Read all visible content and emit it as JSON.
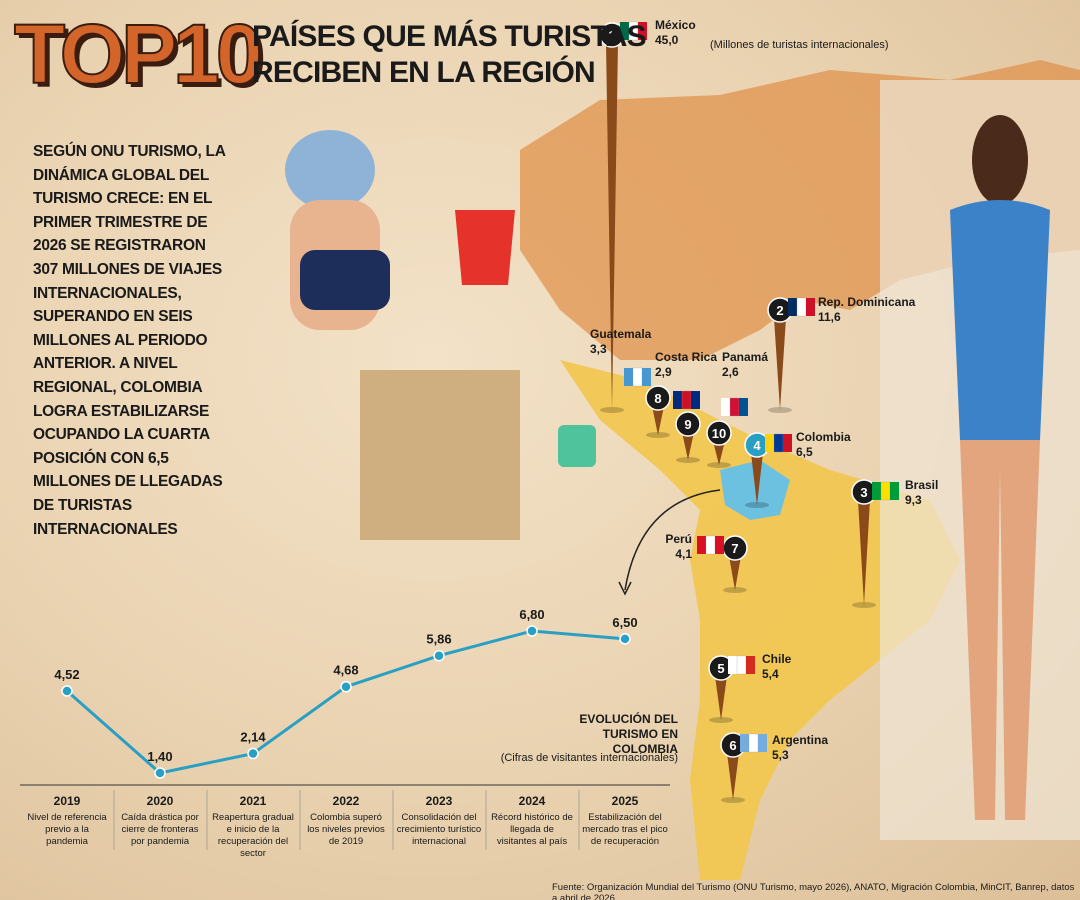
{
  "header": {
    "top": "TOP10",
    "title_lines": [
      "PAÍSES QUE MÁS TURISTAS",
      "RECIBEN EN LA REGIÓN"
    ],
    "unit_note": "(Millones de turistas internacionales)"
  },
  "intro": "SEGÚN ONU TURISMO, LA DINÁMICA GLOBAL DEL TURISMO CRECE: EN EL PRIMER TRIMESTRE DE 2026 SE REGISTRARON 307 MILLONES DE VIAJES INTERNACIONALES, SUPERANDO EN SEIS MILLONES AL PERIODO ANTERIOR. A NIVEL REGIONAL, COLOMBIA LOGRA ESTABILIZARSE OCUPANDO LA CUARTA POSICIÓN CON 6,5 MILLONES DE LLEGADAS DE TURISTAS INTERNACIONALES",
  "ranking": [
    {
      "rank": 1,
      "country": "México",
      "value": 45.0,
      "value_label": "45,0"
    },
    {
      "rank": 2,
      "country": "Rep. Dominicana",
      "value": 11.6,
      "value_label": "11,6"
    },
    {
      "rank": 3,
      "country": "Brasil",
      "value": 9.3,
      "value_label": "9,3"
    },
    {
      "rank": 4,
      "country": "Colombia",
      "value": 6.5,
      "value_label": "6,5"
    },
    {
      "rank": 5,
      "country": "Chile",
      "value": 5.4,
      "value_label": "5,4"
    },
    {
      "rank": 6,
      "country": "Argentina",
      "value": 5.3,
      "value_label": "5,3"
    },
    {
      "rank": 7,
      "country": "Perú",
      "value": 4.1,
      "value_label": "4,1"
    },
    {
      "rank": 8,
      "country": "Guatemala",
      "value": 3.3,
      "value_label": "3,3"
    },
    {
      "rank": 9,
      "country": "Costa Rica",
      "value": 2.9,
      "value_label": "2,9"
    },
    {
      "rank": 10,
      "country": "Panamá",
      "value": 2.6,
      "value_label": "2,6"
    }
  ],
  "chart_data": {
    "type": "line",
    "title": "EVOLUCIÓN DEL TURISMO EN COLOMBIA",
    "subtitle": "(Cifras de visitantes internacionales)",
    "categories": [
      "2019",
      "2020",
      "2021",
      "2022",
      "2023",
      "2024",
      "2025"
    ],
    "notes": [
      "Nivel de referencia previo a la pandemia",
      "Caída drástica por cierre de fronteras por pandemia",
      "Reapertura gradual e inicio de la recuperación del sector",
      "Colombia superó los niveles previos de 2019",
      "Consolidación del crecimiento turístico internacional",
      "Récord histórico de llegada de visitantes al país",
      "Estabilización del mercado tras el pico de recuperación"
    ],
    "values": [
      4.52,
      1.4,
      2.14,
      4.68,
      5.86,
      6.8,
      6.5
    ],
    "value_labels": [
      "4,52",
      "1,40",
      "2,14",
      "4,68",
      "5,86",
      "6,80",
      "6,50"
    ],
    "color": "#2a9fc4"
  },
  "source": "Fuente: Organización Mundial del Turismo (ONU Turismo, mayo 2026), ANATO, Migración Colombia, MinCIT, Banrep, datos a abril de 2026"
}
